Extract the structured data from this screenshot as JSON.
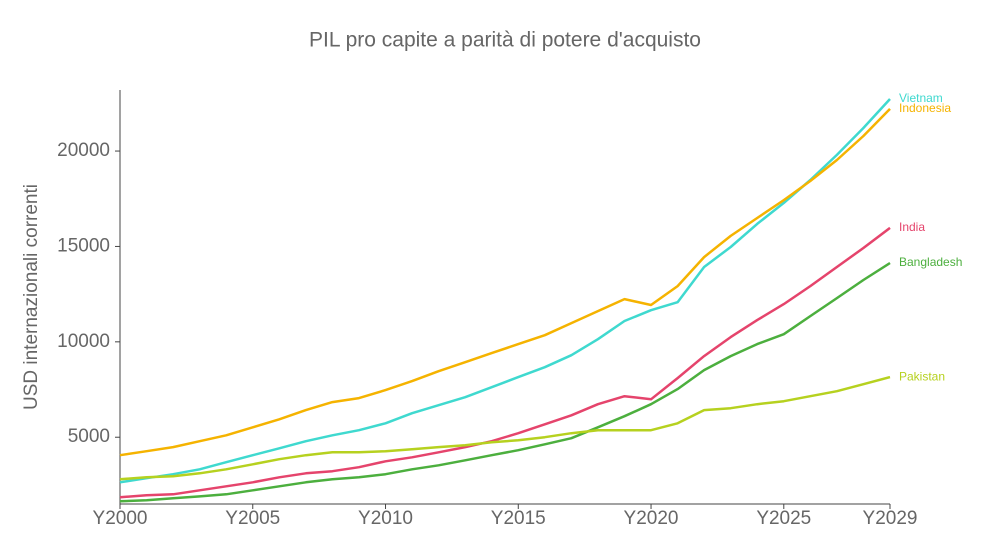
{
  "chart_data": {
    "type": "line",
    "title": "PIL pro capite a parità di potere d'acquisto",
    "y_label": "USD internazionali correnti",
    "categories": [
      "Y2000",
      null,
      null,
      null,
      null,
      "Y2005",
      null,
      null,
      null,
      null,
      "Y2010",
      null,
      null,
      null,
      null,
      "Y2015",
      null,
      null,
      null,
      null,
      "Y2020",
      null,
      null,
      null,
      null,
      "Y2025",
      null,
      null,
      null,
      "Y2029"
    ],
    "ylim": [
      1500,
      23200
    ],
    "yticks": [
      5000,
      10000,
      15000,
      20000
    ],
    "series": [
      {
        "name": "Vietnam",
        "color": "#3fd9cf",
        "values": [
          2640,
          2850,
          3060,
          3320,
          3690,
          4060,
          4420,
          4790,
          5100,
          5370,
          5730,
          6260,
          6680,
          7100,
          7620,
          8150,
          8670,
          9300,
          10140,
          11090,
          11660,
          12080,
          13920,
          14970,
          16180,
          17280,
          18480,
          19800,
          21210,
          22730
        ]
      },
      {
        "name": "Indonesia",
        "color": "#f5b300",
        "values": [
          4060,
          4270,
          4480,
          4790,
          5100,
          5520,
          5940,
          6420,
          6840,
          7050,
          7470,
          7940,
          8460,
          8930,
          9410,
          9880,
          10350,
          10980,
          11610,
          12240,
          11930,
          12920,
          14440,
          15550,
          16490,
          17430,
          18430,
          19530,
          20790,
          22210
        ]
      },
      {
        "name": "India",
        "color": "#e5446c",
        "values": [
          1850,
          1960,
          2010,
          2220,
          2430,
          2640,
          2900,
          3110,
          3220,
          3430,
          3740,
          3950,
          4210,
          4480,
          4790,
          5210,
          5680,
          6150,
          6730,
          7150,
          6990,
          8100,
          9250,
          10250,
          11140,
          11980,
          12920,
          13920,
          14920,
          15970
        ]
      },
      {
        "name": "Bangladesh",
        "color": "#4caf3e",
        "values": [
          1640,
          1700,
          1800,
          1900,
          2010,
          2220,
          2430,
          2640,
          2800,
          2900,
          3060,
          3320,
          3530,
          3790,
          4060,
          4320,
          4630,
          4950,
          5520,
          6100,
          6730,
          7520,
          8520,
          9250,
          9880,
          10400,
          11350,
          12290,
          13240,
          14130
        ]
      },
      {
        "name": "Pakistan",
        "color": "#b6d11f",
        "values": [
          2800,
          2900,
          2950,
          3110,
          3320,
          3580,
          3850,
          4060,
          4210,
          4210,
          4270,
          4370,
          4480,
          4580,
          4740,
          4840,
          5000,
          5210,
          5370,
          5370,
          5370,
          5730,
          6420,
          6520,
          6730,
          6890,
          7150,
          7410,
          7780,
          8150
        ]
      }
    ]
  }
}
